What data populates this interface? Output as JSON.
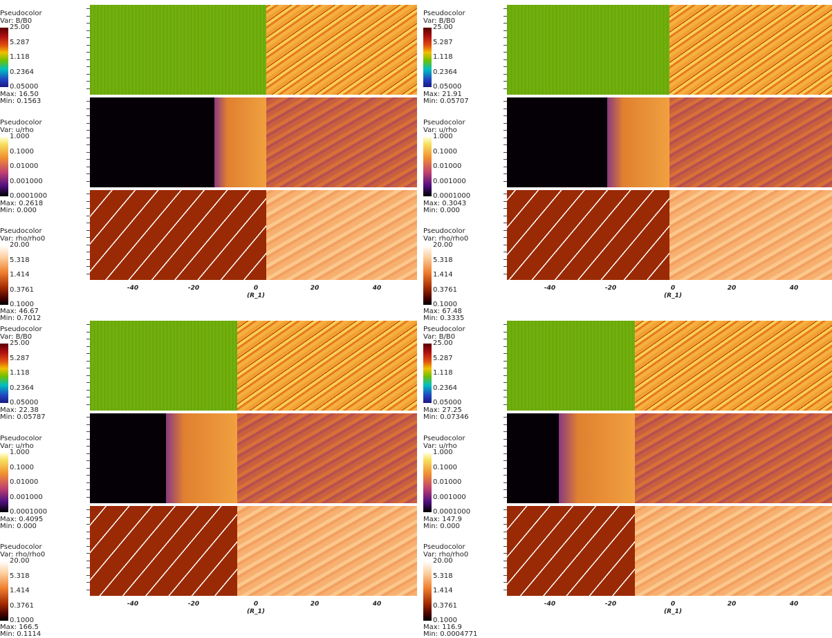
{
  "panels": [
    {
      "x_ticks": [
        "-40",
        "-20",
        "0",
        "20",
        "40"
      ],
      "x_label": "(R_1)",
      "legends": [
        {
          "title": "Pseudocolor",
          "var": "Var: B/B0",
          "ticks": [
            "25.00",
            "5.287",
            "1.118",
            "0.2364",
            "0.05000"
          ],
          "max": "Max: 16.50",
          "min": "Min: 0.1563"
        },
        {
          "title": "Pseudocolor",
          "var": "Var: u/rho",
          "ticks": [
            "1.000",
            "0.1000",
            "0.01000",
            "0.001000",
            "0.0001000"
          ],
          "max": "Max: 0.2618",
          "min": "Min: 0.000"
        },
        {
          "title": "Pseudocolor",
          "var": "Var: rho/rho0",
          "ticks": [
            "20.00",
            "5.318",
            "1.414",
            "0.3761",
            "0.1000"
          ],
          "max": "Max: 46.67",
          "min": "Min: 0.7012"
        }
      ]
    },
    {
      "x_ticks": [
        "-40",
        "-20",
        "0",
        "20",
        "40"
      ],
      "x_label": "(R_1)",
      "legends": [
        {
          "title": "Pseudocolor",
          "var": "Var: B/B0",
          "ticks": [
            "25.00",
            "5.287",
            "1.118",
            "0.2364",
            "0.05000"
          ],
          "max": "Max: 21.91",
          "min": "Min: 0.05707"
        },
        {
          "title": "Pseudocolor",
          "var": "Var: u/rho",
          "ticks": [
            "1.000",
            "0.1000",
            "0.01000",
            "0.001000",
            "0.0001000"
          ],
          "max": "Max: 0.3043",
          "min": "Min: 0.000"
        },
        {
          "title": "Pseudocolor",
          "var": "Var: rho/rho0",
          "ticks": [
            "20.00",
            "5.318",
            "1.414",
            "0.3761",
            "0.1000"
          ],
          "max": "Max: 67.48",
          "min": "Min: 0.3335"
        }
      ]
    },
    {
      "x_ticks": [
        "-40",
        "-20",
        "0",
        "20",
        "40"
      ],
      "x_label": "(R_1)",
      "legends": [
        {
          "title": "Pseudocolor",
          "var": "Var: B/B0",
          "ticks": [
            "25.00",
            "5.287",
            "1.118",
            "0.2364",
            "0.05000"
          ],
          "max": "Max: 22.38",
          "min": "Min: 0.05787"
        },
        {
          "title": "Pseudocolor",
          "var": "Var: u/rho",
          "ticks": [
            "1.000",
            "0.1000",
            "0.01000",
            "0.001000",
            "0.0001000"
          ],
          "max": "Max: 0.4095",
          "min": "Min: 0.000"
        },
        {
          "title": "Pseudocolor",
          "var": "Var: rho/rho0",
          "ticks": [
            "20.00",
            "5.318",
            "1.414",
            "0.3761",
            "0.1000"
          ],
          "max": "Max: 166.5",
          "min": "Min: 0.1114"
        }
      ]
    },
    {
      "x_ticks": [
        "-40",
        "-20",
        "0",
        "20",
        "40"
      ],
      "x_label": "(R_1)",
      "legends": [
        {
          "title": "Pseudocolor",
          "var": "Var: B/B0",
          "ticks": [
            "25.00",
            "5.287",
            "1.118",
            "0.2364",
            "0.05000"
          ],
          "max": "Max: 27.25",
          "min": "Min: 0.07346"
        },
        {
          "title": "Pseudocolor",
          "var": "Var: u/rho",
          "ticks": [
            "1.000",
            "0.1000",
            "0.01000",
            "0.001000",
            "0.0001000"
          ],
          "max": "Max: 147.9",
          "min": "Min: 0.000"
        },
        {
          "title": "Pseudocolor",
          "var": "Var: rho/rho0",
          "ticks": [
            "20.00",
            "5.318",
            "1.414",
            "0.3761",
            "0.1000"
          ],
          "max": "Max: 116.9",
          "min": "Min: 0.0004771"
        }
      ]
    }
  ]
}
